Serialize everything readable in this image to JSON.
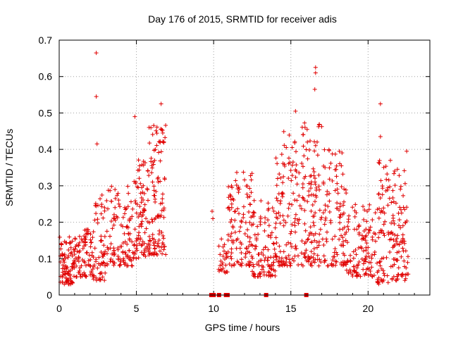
{
  "chart_data": {
    "type": "scatter",
    "title": "Day 176 of 2015, SRMTID for receiver adis",
    "xlabel": "GPS time / hours",
    "ylabel": "SRMTID / TECUs",
    "xlim": [
      0,
      24
    ],
    "ylim": [
      0,
      0.7
    ],
    "x_ticks": [
      0,
      5,
      10,
      15,
      20
    ],
    "x_tick_labels": [
      "0",
      "5",
      "10",
      "15",
      "20"
    ],
    "y_ticks": [
      0,
      0.1,
      0.2,
      0.3,
      0.4,
      0.5,
      0.6,
      0.7
    ],
    "y_tick_labels": [
      "0",
      "0.1",
      "0.2",
      "0.3",
      "0.4",
      "0.5",
      "0.6",
      "0.7"
    ],
    "grid": true,
    "series_color": "#e00000",
    "marker": "plus",
    "outliers": [
      {
        "x": 2.4,
        "y": 0.665
      },
      {
        "x": 2.4,
        "y": 0.545
      },
      {
        "x": 2.45,
        "y": 0.415
      },
      {
        "x": 4.9,
        "y": 0.49
      },
      {
        "x": 6.6,
        "y": 0.525
      },
      {
        "x": 9.9,
        "y": 0.23
      },
      {
        "x": 9.95,
        "y": 0.21
      },
      {
        "x": 15.3,
        "y": 0.505
      },
      {
        "x": 16.6,
        "y": 0.625
      },
      {
        "x": 16.6,
        "y": 0.61
      },
      {
        "x": 16.55,
        "y": 0.565
      },
      {
        "x": 20.8,
        "y": 0.525
      },
      {
        "x": 20.8,
        "y": 0.435
      },
      {
        "x": 22.5,
        "y": 0.395
      }
    ],
    "zero_points_x": [
      9.85,
      10.0,
      10.35,
      10.8,
      10.9,
      13.4,
      16.0
    ],
    "clusters": [
      {
        "x0": 0.0,
        "x1": 1.0,
        "ylo": 0.03,
        "yhi": 0.16,
        "n": 90
      },
      {
        "x0": 1.0,
        "x1": 2.2,
        "ylo": 0.05,
        "yhi": 0.18,
        "n": 80
      },
      {
        "x0": 2.2,
        "x1": 3.0,
        "ylo": 0.04,
        "yhi": 0.28,
        "n": 60
      },
      {
        "x0": 3.0,
        "x1": 4.8,
        "ylo": 0.08,
        "yhi": 0.3,
        "n": 110
      },
      {
        "x0": 4.8,
        "x1": 5.8,
        "ylo": 0.1,
        "yhi": 0.38,
        "n": 90
      },
      {
        "x0": 5.8,
        "x1": 6.9,
        "ylo": 0.11,
        "yhi": 0.47,
        "n": 110
      },
      {
        "x0": 10.3,
        "x1": 10.9,
        "ylo": 0.06,
        "yhi": 0.16,
        "n": 25
      },
      {
        "x0": 10.9,
        "x1": 12.5,
        "ylo": 0.08,
        "yhi": 0.34,
        "n": 110
      },
      {
        "x0": 12.5,
        "x1": 14.0,
        "ylo": 0.05,
        "yhi": 0.26,
        "n": 100
      },
      {
        "x0": 14.0,
        "x1": 15.6,
        "ylo": 0.08,
        "yhi": 0.45,
        "n": 120
      },
      {
        "x0": 15.6,
        "x1": 17.0,
        "ylo": 0.08,
        "yhi": 0.48,
        "n": 120
      },
      {
        "x0": 17.0,
        "x1": 18.6,
        "ylo": 0.08,
        "yhi": 0.4,
        "n": 110
      },
      {
        "x0": 18.6,
        "x1": 20.6,
        "ylo": 0.05,
        "yhi": 0.25,
        "n": 120
      },
      {
        "x0": 20.6,
        "x1": 21.5,
        "ylo": 0.03,
        "yhi": 0.37,
        "n": 70
      },
      {
        "x0": 21.5,
        "x1": 22.6,
        "ylo": 0.04,
        "yhi": 0.35,
        "n": 90
      }
    ]
  }
}
